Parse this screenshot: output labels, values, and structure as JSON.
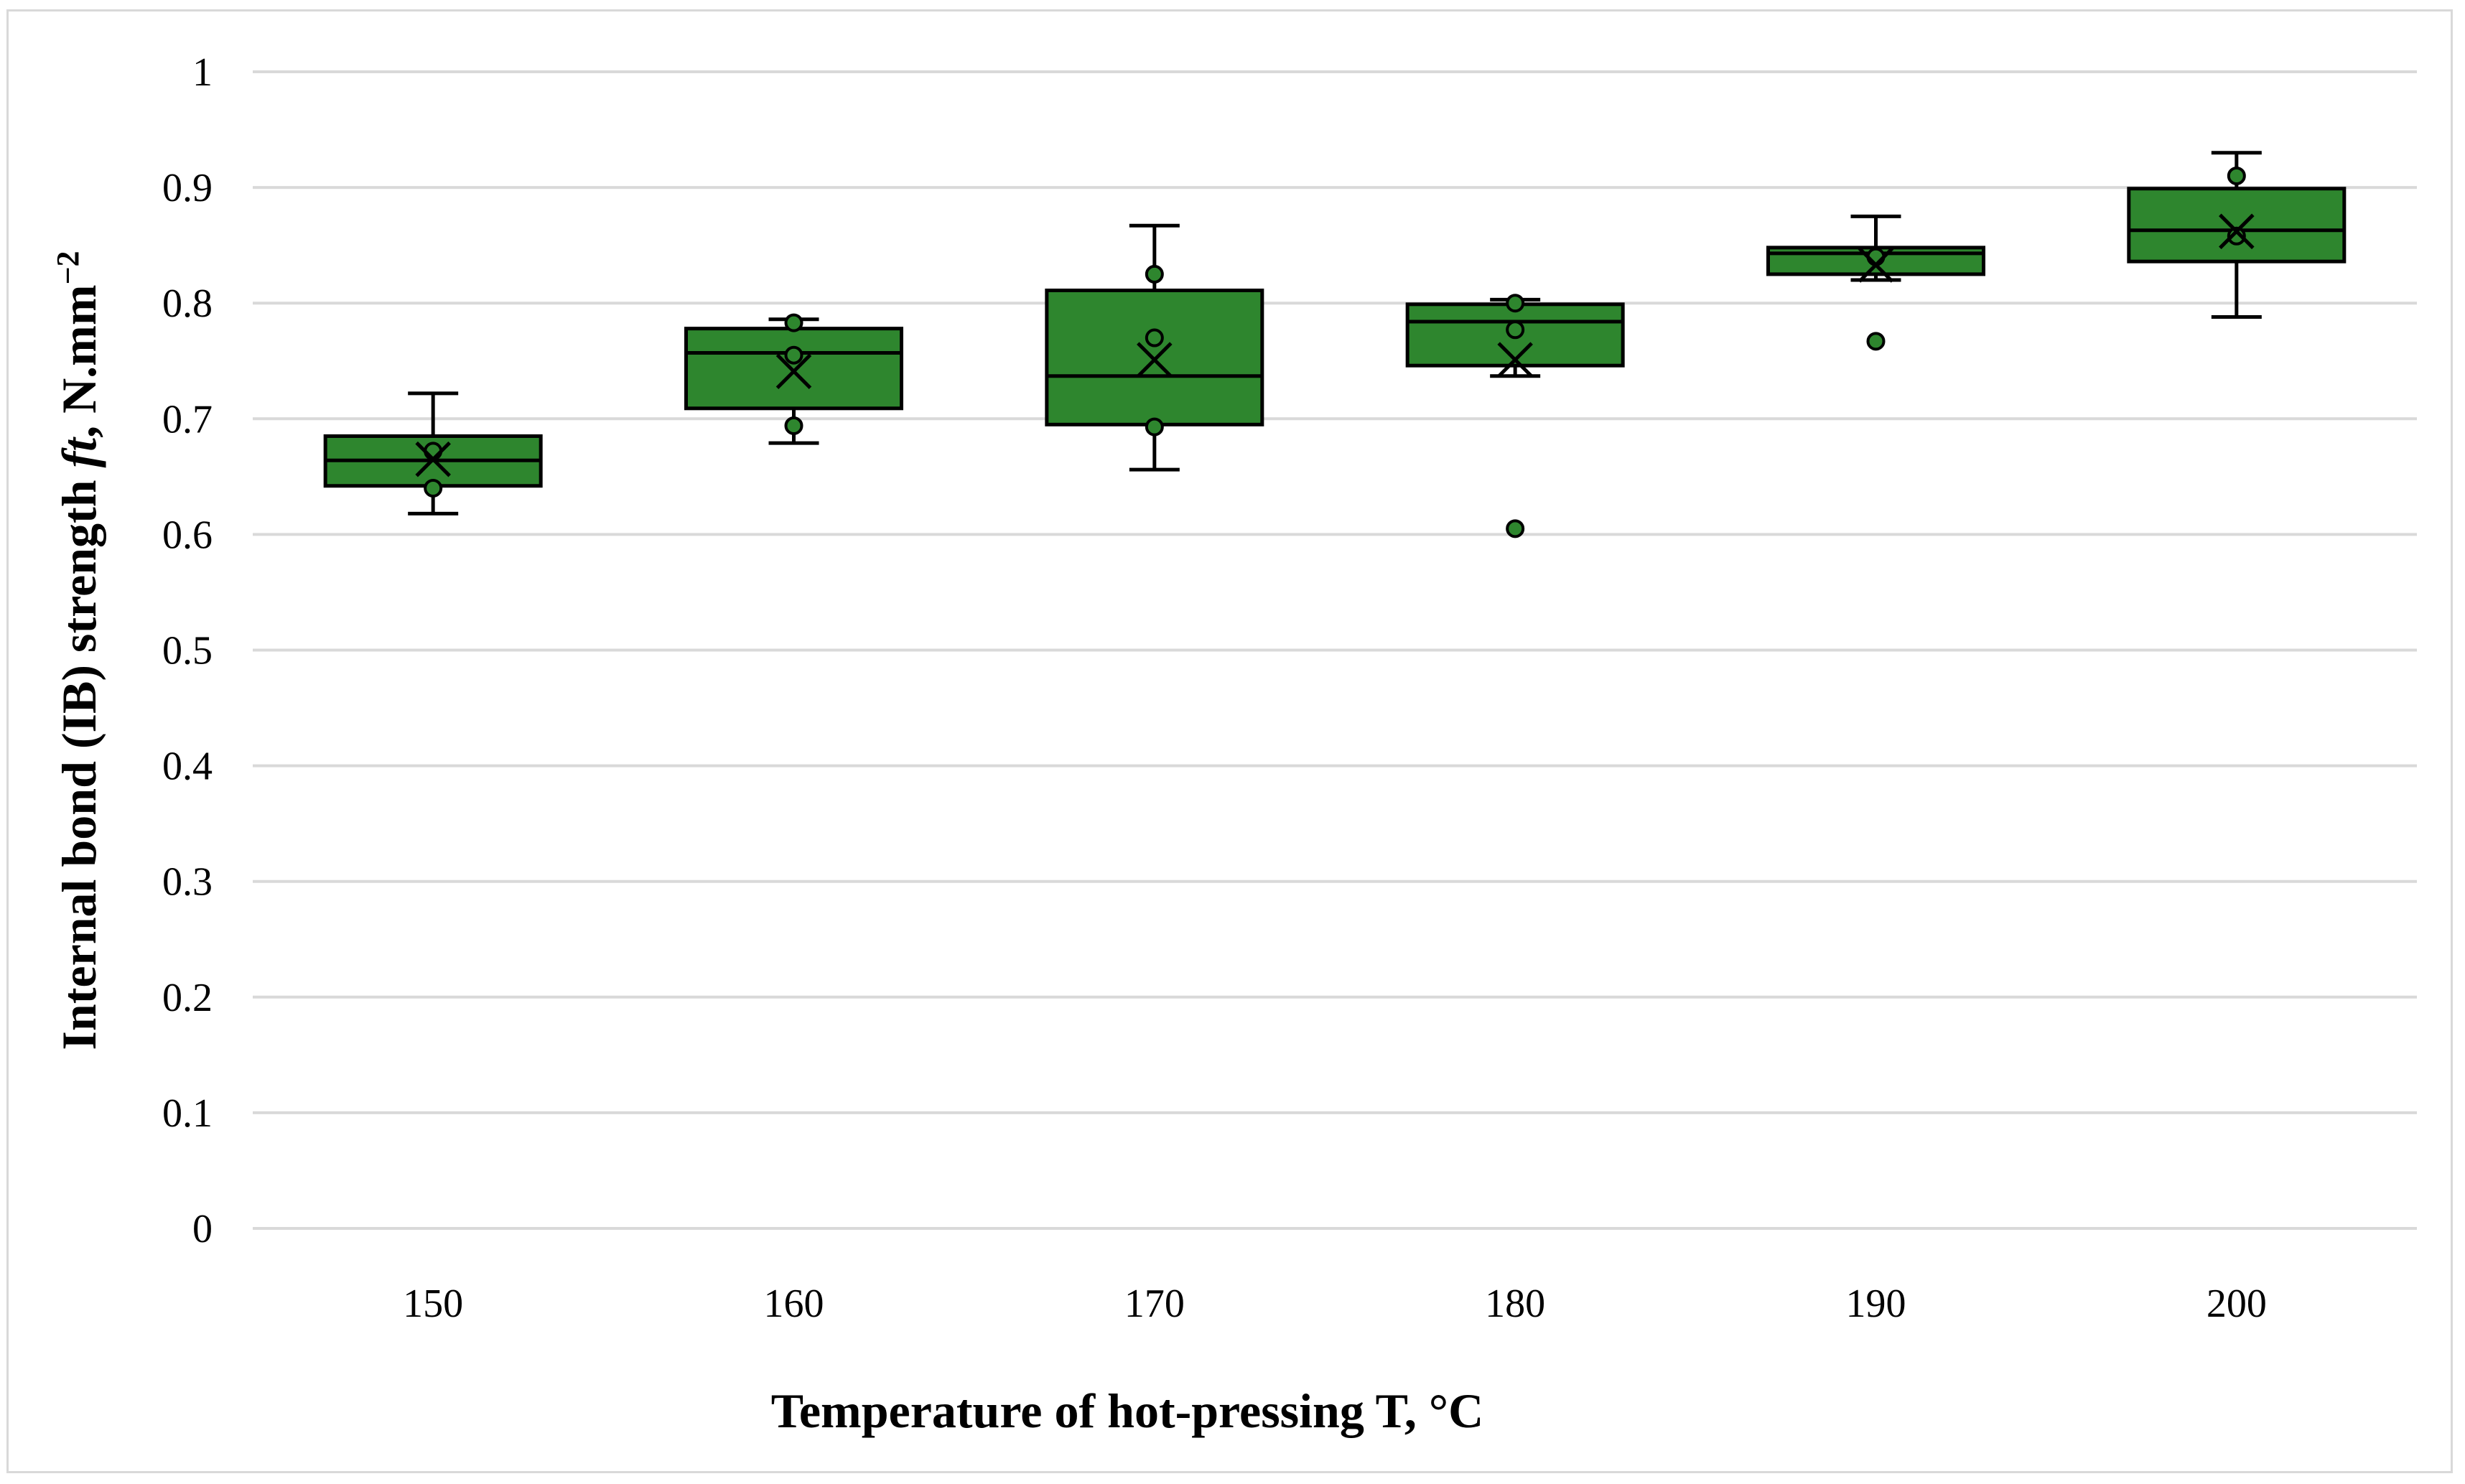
{
  "chart_data": {
    "type": "box",
    "title": "",
    "xlabel": "Temperature of hot-pressing T, °C",
    "ylabel": {
      "prefix": "Internal bond (IB) strength ",
      "symbol": "ft",
      "suffix": ", N.mm",
      "exponent": "−2"
    },
    "ylim": [
      0,
      1
    ],
    "ytick_step": 0.1,
    "ytick_labels": [
      "0",
      "0.1",
      "0.2",
      "0.3",
      "0.4",
      "0.5",
      "0.6",
      "0.7",
      "0.8",
      "0.9",
      "1"
    ],
    "grid": true,
    "colors": {
      "box_fill": "#2e862e",
      "box_stroke": "#000000",
      "point_fill": "#2e862e",
      "grid": "#d9d9d9"
    },
    "categories": [
      "150",
      "160",
      "170",
      "180",
      "190",
      "200"
    ],
    "boxes": [
      {
        "category": "150",
        "whisker_low": 0.618,
        "q1": 0.642,
        "median": 0.664,
        "q3": 0.685,
        "whisker_high": 0.722,
        "mean": 0.665,
        "points": [
          0.672,
          0.64
        ]
      },
      {
        "category": "160",
        "whisker_low": 0.679,
        "q1": 0.709,
        "median": 0.757,
        "q3": 0.778,
        "whisker_high": 0.786,
        "mean": 0.741,
        "points": [
          0.783,
          0.755,
          0.694
        ]
      },
      {
        "category": "170",
        "whisker_low": 0.656,
        "q1": 0.695,
        "median": 0.737,
        "q3": 0.811,
        "whisker_high": 0.867,
        "mean": 0.751,
        "points": [
          0.825,
          0.77,
          0.693
        ]
      },
      {
        "category": "180",
        "whisker_low": 0.737,
        "q1": 0.746,
        "median": 0.784,
        "q3": 0.799,
        "whisker_high": 0.803,
        "mean": 0.751,
        "points": [
          0.8,
          0.777,
          0.605
        ]
      },
      {
        "category": "190",
        "whisker_low": 0.82,
        "q1": 0.825,
        "median": 0.843,
        "q3": 0.848,
        "whisker_high": 0.875,
        "mean": 0.833,
        "points": [
          0.84,
          0.767
        ]
      },
      {
        "category": "200",
        "whisker_low": 0.788,
        "q1": 0.836,
        "median": 0.863,
        "q3": 0.899,
        "whisker_high": 0.93,
        "mean": 0.862,
        "points": [
          0.91,
          0.858
        ]
      }
    ]
  }
}
